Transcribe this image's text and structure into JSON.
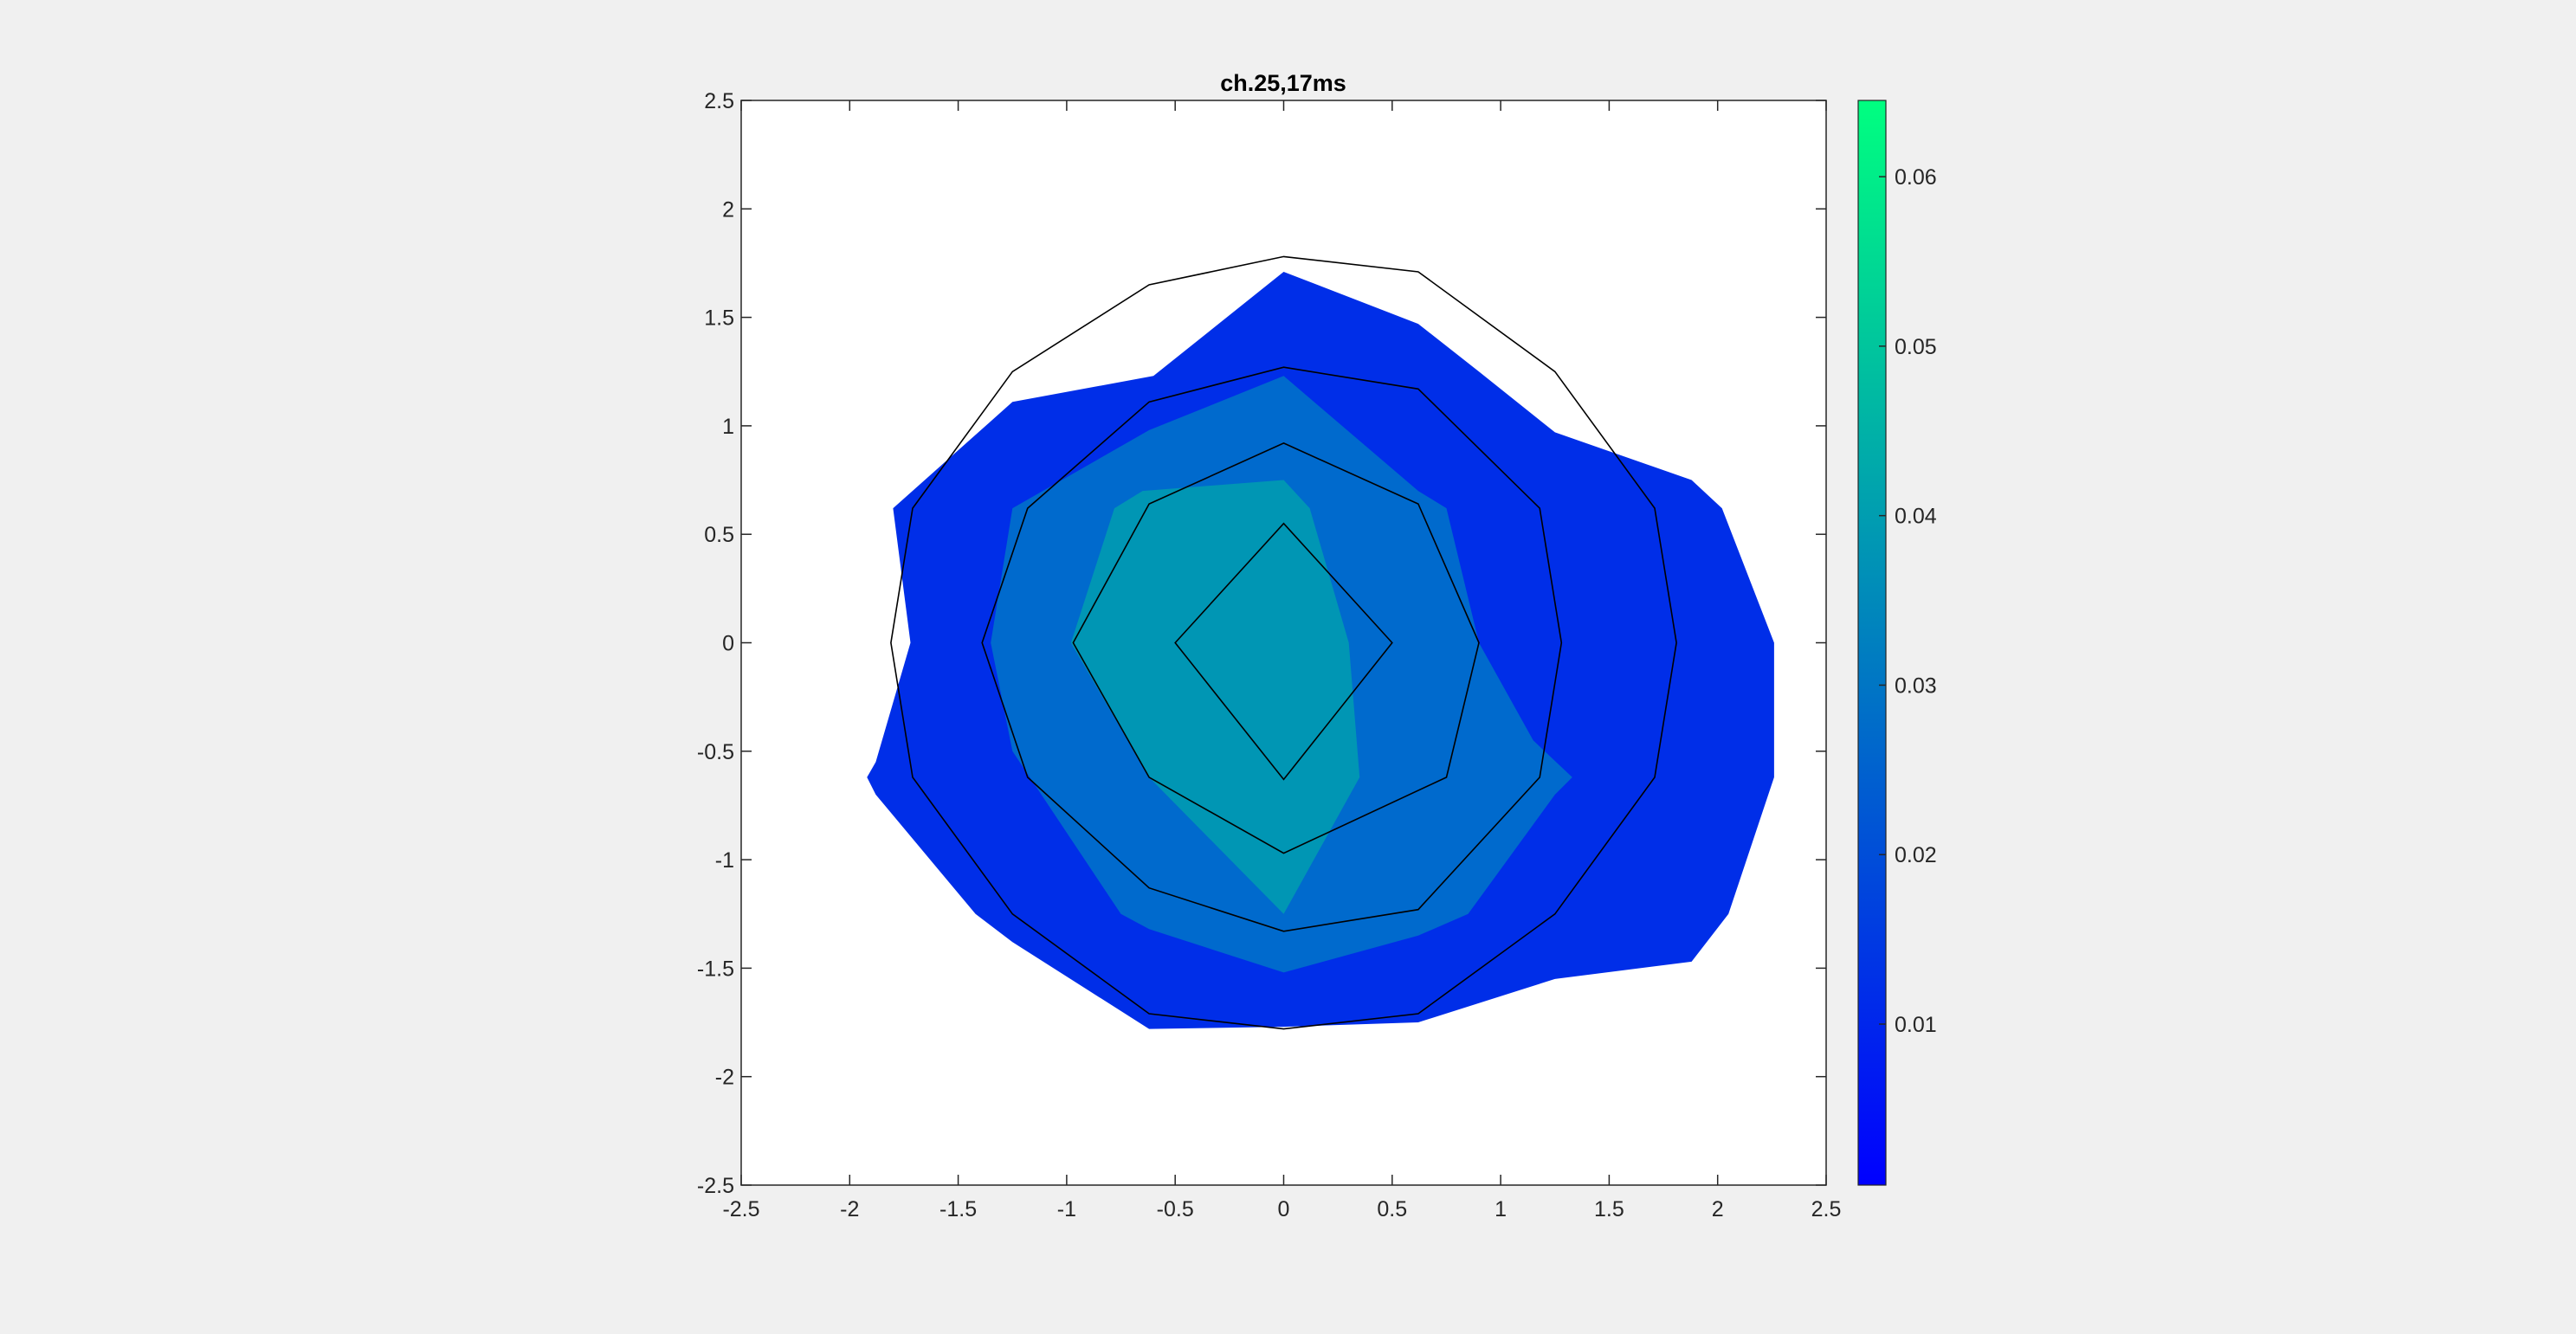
{
  "chart_data": {
    "type": "contour",
    "title": "ch.25,17ms",
    "xlabel": "",
    "ylabel": "",
    "xlim": [
      -2.5,
      2.5
    ],
    "ylim": [
      -2.5,
      2.5
    ],
    "xticks": [
      "-2.5",
      "-2",
      "-1.5",
      "-1",
      "-0.5",
      "0",
      "0.5",
      "1",
      "1.5",
      "2",
      "2.5"
    ],
    "yticks": [
      "2.5",
      "2",
      "1.5",
      "1",
      "0.5",
      "0",
      "-0.5",
      "-1",
      "-1.5",
      "-2",
      "-2.5"
    ],
    "colorbar": {
      "range": [
        0.0005,
        0.0645
      ],
      "ticks": [
        "0.06",
        "0.05",
        "0.04",
        "0.03",
        "0.02",
        "0.01"
      ],
      "colors": {
        "low": "#0000ff",
        "high": "#00ff80"
      }
    },
    "filled_levels": [
      {
        "level": 0.0005,
        "color": "#002ee8",
        "points": [
          [
            -1.8,
            0.62
          ],
          [
            -1.25,
            1.11
          ],
          [
            -0.6,
            1.23
          ],
          [
            0,
            1.71
          ],
          [
            0.62,
            1.47
          ],
          [
            0.9,
            1.25
          ],
          [
            1.25,
            0.97
          ],
          [
            1.88,
            0.75
          ],
          [
            2.02,
            0.62
          ],
          [
            2.26,
            0
          ],
          [
            2.26,
            -0.62
          ],
          [
            2.05,
            -1.25
          ],
          [
            1.88,
            -1.47
          ],
          [
            1.25,
            -1.55
          ],
          [
            0.62,
            -1.75
          ],
          [
            0,
            -1.77
          ],
          [
            -0.62,
            -1.78
          ],
          [
            -1.25,
            -1.38
          ],
          [
            -1.42,
            -1.25
          ],
          [
            -1.88,
            -0.7
          ],
          [
            -1.92,
            -0.62
          ],
          [
            -1.88,
            -0.55
          ],
          [
            -1.72,
            0
          ]
        ]
      },
      {
        "level": 0.0195,
        "color": "#006acd",
        "points": [
          [
            -1.25,
            0.62
          ],
          [
            -0.62,
            0.98
          ],
          [
            0,
            1.23
          ],
          [
            0.62,
            0.7
          ],
          [
            0.75,
            0.62
          ],
          [
            0.9,
            0
          ],
          [
            1.15,
            -0.45
          ],
          [
            1.33,
            -0.62
          ],
          [
            1.25,
            -0.7
          ],
          [
            0.85,
            -1.25
          ],
          [
            0.62,
            -1.35
          ],
          [
            0,
            -1.52
          ],
          [
            -0.62,
            -1.32
          ],
          [
            -0.75,
            -1.25
          ],
          [
            -1.25,
            -0.5
          ],
          [
            -1.35,
            0
          ]
        ]
      },
      {
        "level": 0.033,
        "color": "#0096b4",
        "points": [
          [
            -0.78,
            0.62
          ],
          [
            -0.65,
            0.7
          ],
          [
            0,
            0.75
          ],
          [
            0.12,
            0.62
          ],
          [
            0.3,
            0
          ],
          [
            0.35,
            -0.62
          ],
          [
            0,
            -1.25
          ],
          [
            -0.62,
            -0.62
          ],
          [
            -0.98,
            0
          ]
        ]
      }
    ],
    "outline_rings": [
      [
        [
          0,
          1.78
        ],
        [
          0.62,
          1.71
        ],
        [
          1.25,
          1.25
        ],
        [
          1.71,
          0.62
        ],
        [
          1.81,
          0
        ],
        [
          1.71,
          -0.62
        ],
        [
          1.25,
          -1.25
        ],
        [
          0.62,
          -1.71
        ],
        [
          0,
          -1.78
        ],
        [
          -0.62,
          -1.71
        ],
        [
          -1.25,
          -1.25
        ],
        [
          -1.71,
          -0.62
        ],
        [
          -1.81,
          0
        ],
        [
          -1.71,
          0.62
        ],
        [
          -1.25,
          1.25
        ],
        [
          -0.62,
          1.65
        ]
      ],
      [
        [
          0,
          1.27
        ],
        [
          0.62,
          1.17
        ],
        [
          1.18,
          0.62
        ],
        [
          1.28,
          0
        ],
        [
          1.18,
          -0.62
        ],
        [
          0.62,
          -1.23
        ],
        [
          0,
          -1.33
        ],
        [
          -0.62,
          -1.13
        ],
        [
          -1.18,
          -0.62
        ],
        [
          -1.39,
          0
        ],
        [
          -1.18,
          0.62
        ],
        [
          -0.62,
          1.11
        ]
      ],
      [
        [
          0,
          0.92
        ],
        [
          0.62,
          0.64
        ],
        [
          0.9,
          0
        ],
        [
          0.75,
          -0.62
        ],
        [
          0,
          -0.97
        ],
        [
          -0.62,
          -0.62
        ],
        [
          -0.97,
          0
        ],
        [
          -0.62,
          0.64
        ]
      ],
      [
        [
          0,
          0.55
        ],
        [
          0.5,
          0
        ],
        [
          0,
          -0.63
        ],
        [
          -0.5,
          0
        ]
      ]
    ]
  }
}
